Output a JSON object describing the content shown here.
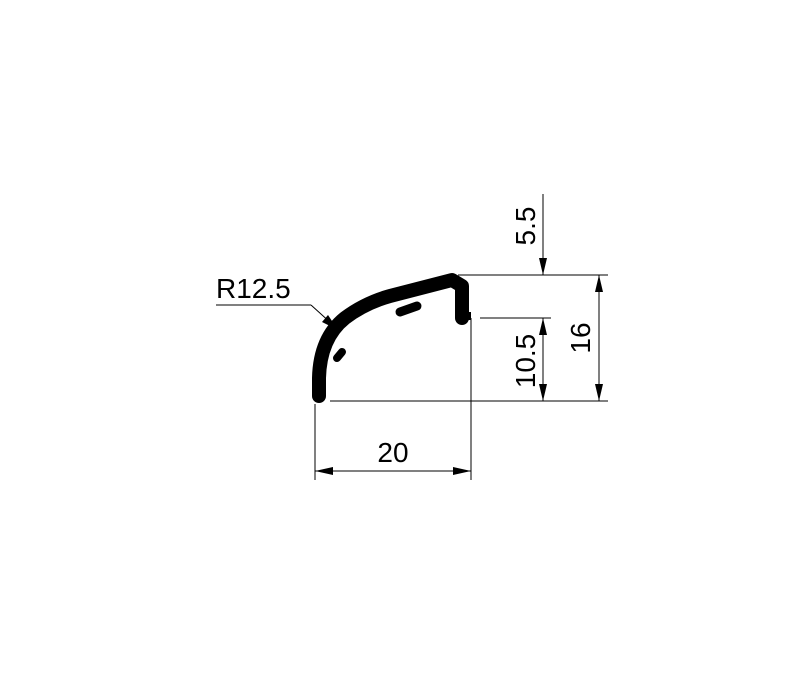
{
  "drawing": {
    "radius_label": "R12.5",
    "width_label": "20",
    "top_offset_label": "5.5",
    "lower_height_label": "10.5",
    "total_height_label": "16"
  }
}
